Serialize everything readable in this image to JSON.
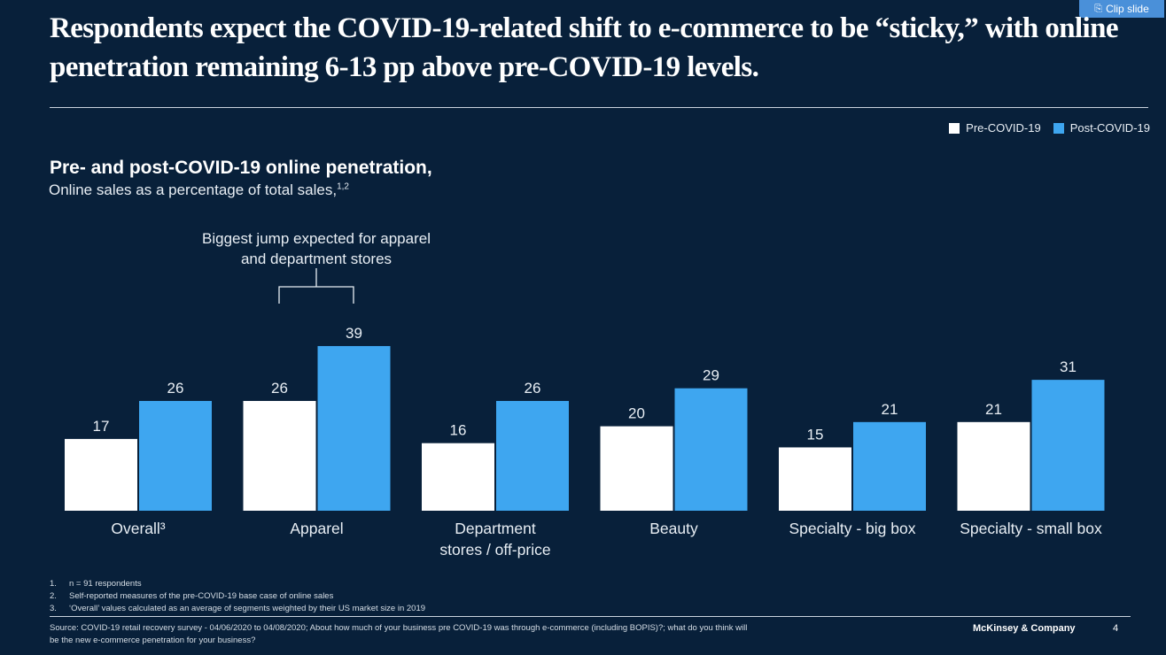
{
  "clip_button": {
    "label": "Clip slide",
    "icon": "clip-icon"
  },
  "headline": "Respondents expect the COVID-19-related shift to e-commerce to be “sticky,” with online penetration remaining 6-13 pp above pre-COVID-19 levels.",
  "legend": [
    {
      "label": "Pre-COVID-19",
      "color": "#ffffff"
    },
    {
      "label": "Post-COVID-19",
      "color": "#3ea6f0"
    }
  ],
  "annotation": "Biggest jump expected for apparel and department stores",
  "chart_data": {
    "type": "bar",
    "title": "Pre- and post-COVID-19 online penetration,",
    "subtitle": "Online sales as a percentage of total sales,",
    "subtitle_footnote": "1,2",
    "categories": [
      "Overall",
      "Apparel",
      "Department stores / off-price",
      "Beauty",
      "Specialty - big box",
      "Specialty - small box"
    ],
    "category_lines": [
      [
        "Overall³"
      ],
      [
        "Apparel"
      ],
      [
        "Department",
        "stores / off-price"
      ],
      [
        "Beauty"
      ],
      [
        "Specialty - big box"
      ],
      [
        "Specialty - small box"
      ]
    ],
    "series": [
      {
        "name": "Pre-COVID-19",
        "values": [
          17,
          26,
          16,
          20,
          15,
          21
        ],
        "color": "#ffffff"
      },
      {
        "name": "Post-COVID-19",
        "values": [
          26,
          39,
          26,
          29,
          21,
          31
        ],
        "color": "#3ea6f0"
      }
    ],
    "ylim": [
      0,
      40
    ],
    "grid": false,
    "legend_position": "top-right",
    "xlabel": "",
    "ylabel": ""
  },
  "footnotes": [
    {
      "num": "1.",
      "text": "n = 91 respondents"
    },
    {
      "num": "2.",
      "text": "Self-reported measures of the pre-COVID-19 base case of online sales"
    },
    {
      "num": "3.",
      "text": "‘Overall’ values calculated as an average of segments weighted by their US market size in 2019"
    }
  ],
  "source": "Source: COVID-19 retail recovery survey - 04/06/2020 to 04/08/2020; About how much of your business pre COVID-19 was through e-commerce (including BOPIS)?; what do you think will be the new e-commerce penetration for your business?",
  "brand": "McKinsey & Company",
  "page_number": "4"
}
